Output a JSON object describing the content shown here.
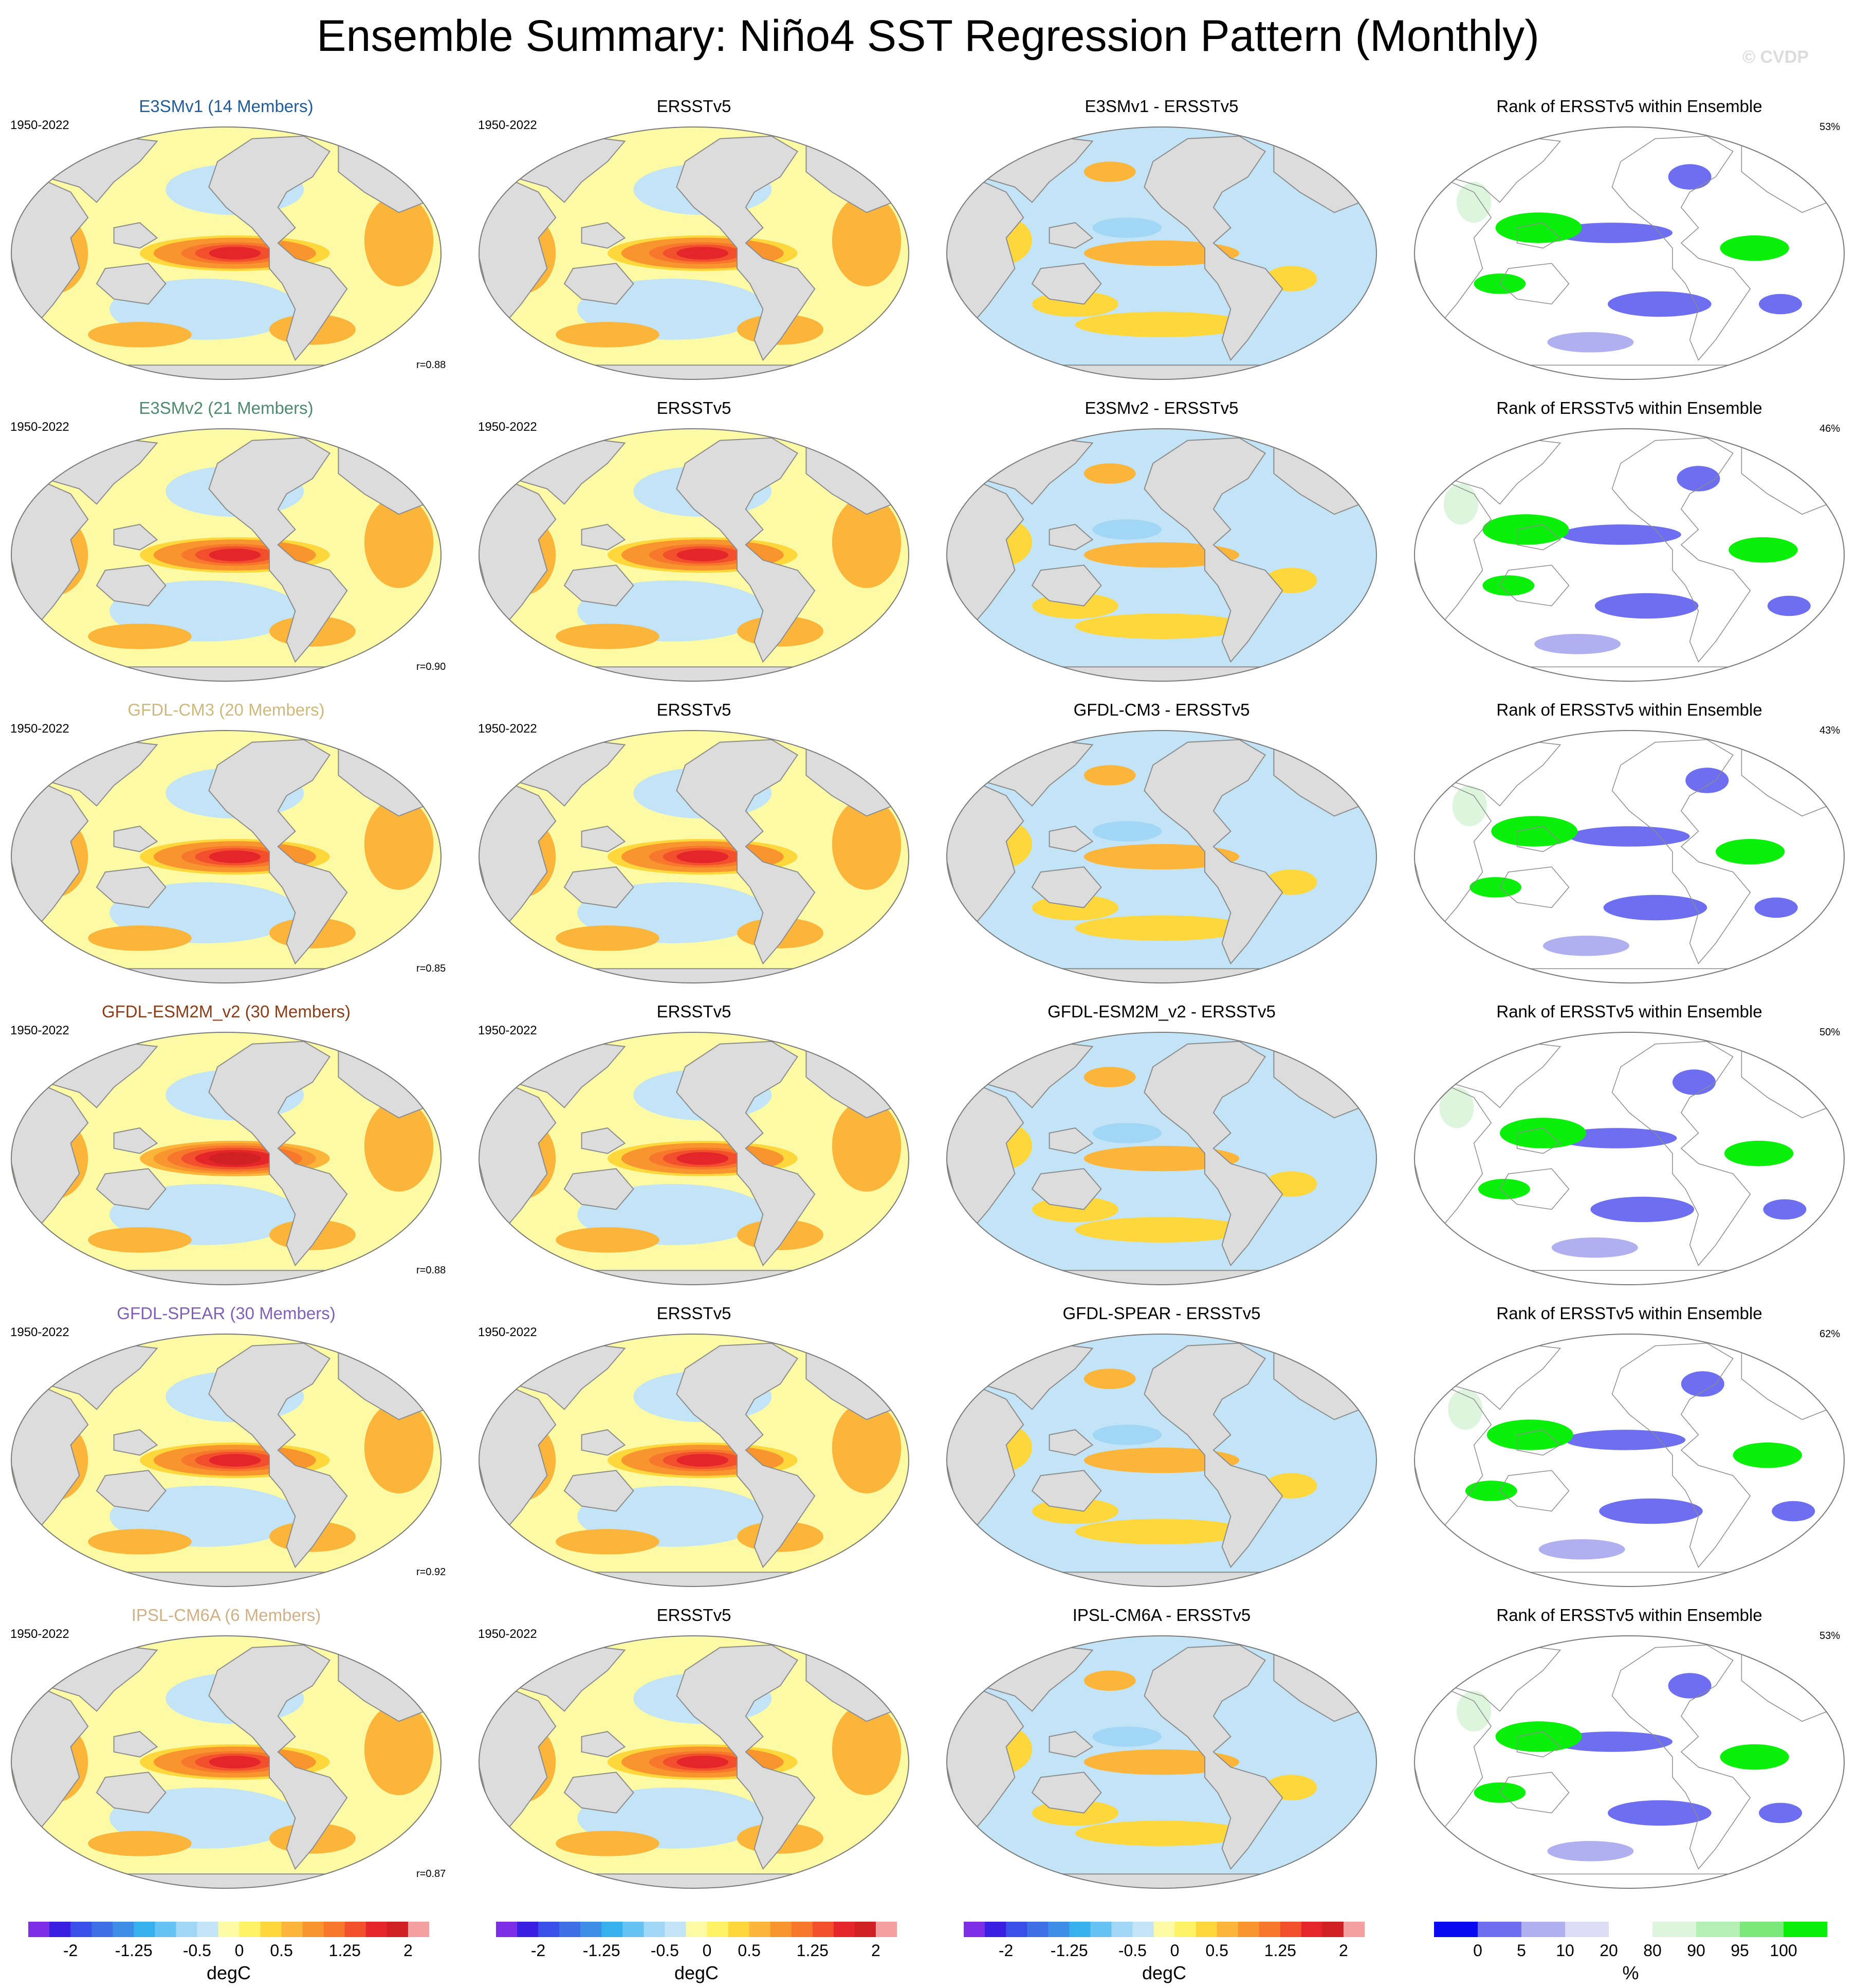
{
  "title": "Ensemble Summary: Niño4 SST Regression Pattern (Monthly)",
  "copyright": "© CVDP",
  "column_titles": {
    "observations": "ERSSTv5",
    "rank": "Rank of ERSSTv5 within Ensemble"
  },
  "rows": [
    {
      "model": "E3SMv1 (14 Members)",
      "difference_title": "E3SMv1 - ERSSTv5",
      "period": "1950-2022",
      "correlation": "r=0.88",
      "rank_percent": "53%",
      "title_color": "#1f5c99",
      "model_strength": 1.05,
      "diff_pattern": "mixed"
    },
    {
      "model": "E3SMv2 (21 Members)",
      "difference_title": "E3SMv2 - ERSSTv5",
      "period": "1950-2022",
      "correlation": "r=0.90",
      "rank_percent": "46%",
      "title_color": "#4f8a6e",
      "model_strength": 1.05,
      "diff_pattern": "cool"
    },
    {
      "model": "GFDL-CM3 (20 Members)",
      "difference_title": "GFDL-CM3 - ERSSTv5",
      "period": "1950-2022",
      "correlation": "r=0.85",
      "rank_percent": "43%",
      "title_color": "#cfb97a",
      "model_strength": 1.1,
      "diff_pattern": "warm"
    },
    {
      "model": "GFDL-ESM2M_v2 (30 Members)",
      "difference_title": "GFDL-ESM2M_v2 - ERSSTv5",
      "period": "1950-2022",
      "correlation": "r=0.88",
      "rank_percent": "50%",
      "title_color": "#8a3d18",
      "model_strength": 1.3,
      "diff_pattern": "mixed"
    },
    {
      "model": "GFDL-SPEAR (30 Members)",
      "difference_title": "GFDL-SPEAR - ERSSTv5",
      "period": "1950-2022",
      "correlation": "r=0.92",
      "rank_percent": "62%",
      "title_color": "#8060b8",
      "model_strength": 1.05,
      "diff_pattern": "warm"
    },
    {
      "model": "IPSL-CM6A (6 Members)",
      "difference_title": "IPSL-CM6A - ERSSTv5",
      "period": "1950-2022",
      "correlation": "r=0.87",
      "rank_percent": "53%",
      "title_color": "#d0b087",
      "model_strength": 1.1,
      "diff_pattern": "mixed"
    }
  ],
  "sst_colorbar": {
    "unit": "degC",
    "tick_labels": [
      "-2",
      "-1.25",
      "-0.5",
      "0",
      "0.5",
      "1.25",
      "2"
    ],
    "tick_values": [
      -2,
      -1.25,
      -0.5,
      0,
      0.5,
      1.25,
      2
    ],
    "levels": [
      -2.25,
      -2,
      -1.75,
      -1.5,
      -1.25,
      -1,
      -0.75,
      -0.5,
      -0.25,
      0,
      0.25,
      0.5,
      0.75,
      1,
      1.25,
      1.5,
      1.75,
      2,
      2.25
    ],
    "colors": [
      "#7e2fe6",
      "#3a1fe0",
      "#3a4fe8",
      "#3f6fe4",
      "#3e8ee8",
      "#37b0ee",
      "#65c2f2",
      "#a1d7f4",
      "#c2e4f6",
      "#fdfaa5",
      "#fef267",
      "#fdd73c",
      "#fbb53a",
      "#f9952e",
      "#f7772c",
      "#f2502c",
      "#e4262a",
      "#cf2024",
      "#f5a0a0"
    ]
  },
  "rank_colorbar": {
    "unit": "%",
    "tick_labels": [
      "0",
      "5",
      "10",
      "20",
      "80",
      "90",
      "95",
      "100"
    ],
    "levels": [
      0,
      5,
      10,
      20,
      80,
      90,
      95,
      100
    ],
    "colors": [
      "#0a0af0",
      "#6e6ef0",
      "#b0b0f0",
      "#ddddf6",
      "#ffffff",
      "#dcf5dc",
      "#b4f0b4",
      "#7ce87c",
      "#0af00a"
    ]
  },
  "land_color": "#dcdcdc",
  "coast_color": "#8c8c8c"
}
